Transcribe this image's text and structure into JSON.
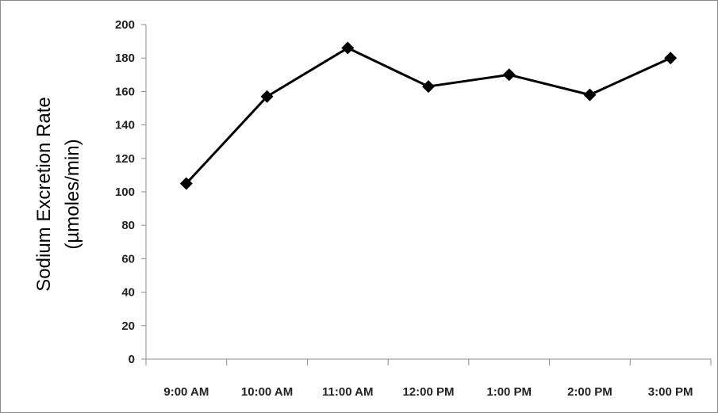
{
  "chart_data": {
    "type": "line",
    "title": "",
    "xlabel": "",
    "ylabel": [
      "Sodium Excretion Rate",
      "(µmoles/min)"
    ],
    "categories": [
      "9:00 AM",
      "10:00 AM",
      "11:00 AM",
      "12:00 PM",
      "1:00 PM",
      "2:00 PM",
      "3:00 PM"
    ],
    "series": [
      {
        "values": [
          105,
          157,
          186,
          163,
          170,
          158,
          180
        ]
      }
    ],
    "ylim": [
      0,
      200
    ],
    "yticks": [
      0,
      20,
      40,
      60,
      80,
      100,
      120,
      140,
      160,
      180,
      200
    ],
    "grid": false,
    "legend": "none",
    "marker": "diamond",
    "colors": {
      "line": "#000000",
      "axis": "#8c8c8c",
      "text": "#222222"
    }
  }
}
